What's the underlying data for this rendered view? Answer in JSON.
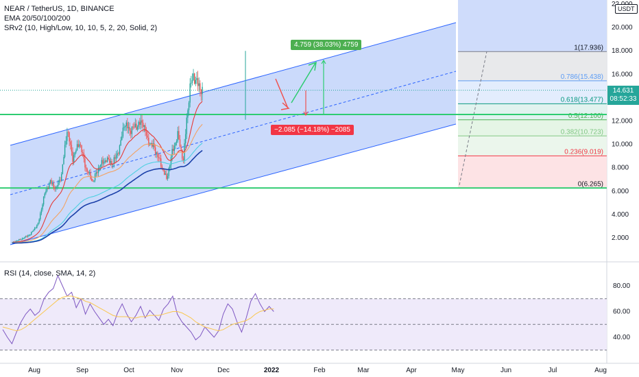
{
  "legend": {
    "symbol": "NEAR / TetherUS, 1D, BINANCE",
    "ema": "EMA 20/50/100/200",
    "srv": "SRv2 (10, High/Low, 10, 10, 5, 2, 20, Solid, 2)",
    "rsi": "RSI (14, close, SMA, 14, 2)"
  },
  "currency_badge": "USDT",
  "price_badge": {
    "price": "14.631",
    "countdown": "08:52:33"
  },
  "annotations": {
    "up": "4.759 (38.03%) 4759",
    "down": "−2.085 (−14.18%) −2085"
  },
  "colors": {
    "channel_fill": "#c8d8fb",
    "channel_line": "#2962ff",
    "support_green": "#2ecc71",
    "candle_up": "#26a69a",
    "candle_down": "#ef5350",
    "ema20": "#e53935",
    "ema50": "#f4a261",
    "ema100": "#4dd0e1",
    "ema200": "#1a3fa8",
    "rsi_line": "#7e57c2",
    "rsi_sma": "#f9c74f"
  },
  "chart_data": [
    {
      "type": "candlestick",
      "title": "NEAR / TetherUS, 1D, BINANCE",
      "x_ticks": [
        "Aug",
        "Sep",
        "Oct",
        "Nov",
        "Dec",
        "2022",
        "Feb",
        "Mar",
        "Apr",
        "May",
        "Jun",
        "Jul",
        "Aug"
      ],
      "y_ticks": [
        "2.000",
        "4.000",
        "6.000",
        "8.000",
        "10.000",
        "12.000",
        "14.000",
        "16.000",
        "18.000",
        "20.000",
        "22.000"
      ],
      "ylim": [
        0.8,
        22.4
      ],
      "key_levels": [
        6.265,
        12.555
      ],
      "series_close": [
        {
          "date": "2021-07-20",
          "close": 1.6
        },
        {
          "date": "2021-07-28",
          "close": 1.9
        },
        {
          "date": "2021-08-05",
          "close": 2.3
        },
        {
          "date": "2021-08-12",
          "close": 3.2
        },
        {
          "date": "2021-08-18",
          "close": 5.8
        },
        {
          "date": "2021-08-23",
          "close": 6.8
        },
        {
          "date": "2021-08-28",
          "close": 6.2
        },
        {
          "date": "2021-09-02",
          "close": 7.4
        },
        {
          "date": "2021-09-07",
          "close": 11.3
        },
        {
          "date": "2021-09-12",
          "close": 8.8
        },
        {
          "date": "2021-09-18",
          "close": 10.2
        },
        {
          "date": "2021-09-24",
          "close": 7.9
        },
        {
          "date": "2021-09-30",
          "close": 6.8
        },
        {
          "date": "2021-10-06",
          "close": 8.2
        },
        {
          "date": "2021-10-12",
          "close": 8.7
        },
        {
          "date": "2021-10-18",
          "close": 8.4
        },
        {
          "date": "2021-10-24",
          "close": 9.7
        },
        {
          "date": "2021-10-28",
          "close": 11.8
        },
        {
          "date": "2021-11-02",
          "close": 11.2
        },
        {
          "date": "2021-11-08",
          "close": 11.6
        },
        {
          "date": "2021-11-14",
          "close": 11.9
        },
        {
          "date": "2021-11-18",
          "close": 10.3
        },
        {
          "date": "2021-11-24",
          "close": 9.7
        },
        {
          "date": "2021-11-30",
          "close": 8.3
        },
        {
          "date": "2021-12-05",
          "close": 7.0
        },
        {
          "date": "2021-12-10",
          "close": 9.3
        },
        {
          "date": "2021-12-15",
          "close": 10.8
        },
        {
          "date": "2021-12-20",
          "close": 8.6
        },
        {
          "date": "2021-12-23",
          "close": 12.2
        },
        {
          "date": "2021-12-26",
          "close": 14.8
        },
        {
          "date": "2021-12-29",
          "close": 15.9
        },
        {
          "date": "2022-01-02",
          "close": 15.1
        },
        {
          "date": "2022-01-06",
          "close": 14.6
        }
      ]
    },
    {
      "type": "fibonacci",
      "levels": [
        {
          "ratio": 1,
          "price": 17.936,
          "label": "1(17.936)",
          "color": "#787b86",
          "fill": "#e7e8ea"
        },
        {
          "ratio": 0.786,
          "price": 15.438,
          "label": "0.786(15.438)",
          "color": "#5b9cf6",
          "fill": "#e1ecfd"
        },
        {
          "ratio": 0.618,
          "price": 13.477,
          "label": "0.618(13.477)",
          "color": "#089981",
          "fill": "#dff2ee"
        },
        {
          "ratio": 0.5,
          "price": 12.1,
          "label": "0.5(12.100)",
          "color": "#4caf50",
          "fill": "#e4f4e5"
        },
        {
          "ratio": 0.382,
          "price": 10.723,
          "label": "0.382(10.723)",
          "color": "#81c784",
          "fill": "#eaf6eb"
        },
        {
          "ratio": 0.236,
          "price": 9.019,
          "label": "0.236(9.019)",
          "color": "#f23645",
          "fill": "#fde2e4"
        },
        {
          "ratio": 0,
          "price": 6.265,
          "label": "0(6.265)",
          "color": "#787b86",
          "fill": "none"
        }
      ]
    },
    {
      "type": "line",
      "title": "RSI (14, close, SMA, 14, 2)",
      "y_ticks": [
        "40.00",
        "60.00",
        "80.00"
      ],
      "ylim": [
        25,
        93
      ],
      "bands": [
        30,
        50,
        70
      ],
      "rsi": [
        46,
        40,
        35,
        44,
        52,
        58,
        62,
        57,
        60,
        70,
        75,
        78,
        88,
        80,
        72,
        75,
        63,
        70,
        58,
        66,
        60,
        55,
        50,
        54,
        49,
        59,
        66,
        58,
        52,
        57,
        64,
        55,
        61,
        57,
        53,
        62,
        66,
        72,
        58,
        52,
        48,
        44,
        38,
        41,
        48,
        44,
        40,
        45,
        58,
        66,
        62,
        52,
        44,
        55,
        68,
        74,
        66,
        60,
        64,
        60
      ],
      "rsi_sma": [
        48,
        47,
        46,
        45,
        46,
        48,
        51,
        54,
        57,
        60,
        63,
        66,
        69,
        71,
        72,
        72,
        71,
        70,
        68,
        67,
        65,
        63,
        61,
        59,
        57,
        56,
        56,
        56,
        55,
        55,
        56,
        56,
        57,
        57,
        57,
        58,
        59,
        60,
        60,
        59,
        57,
        55,
        52,
        50,
        48,
        47,
        46,
        45,
        46,
        48,
        50,
        51,
        52,
        53,
        55,
        58,
        60,
        61,
        62,
        62
      ]
    }
  ]
}
